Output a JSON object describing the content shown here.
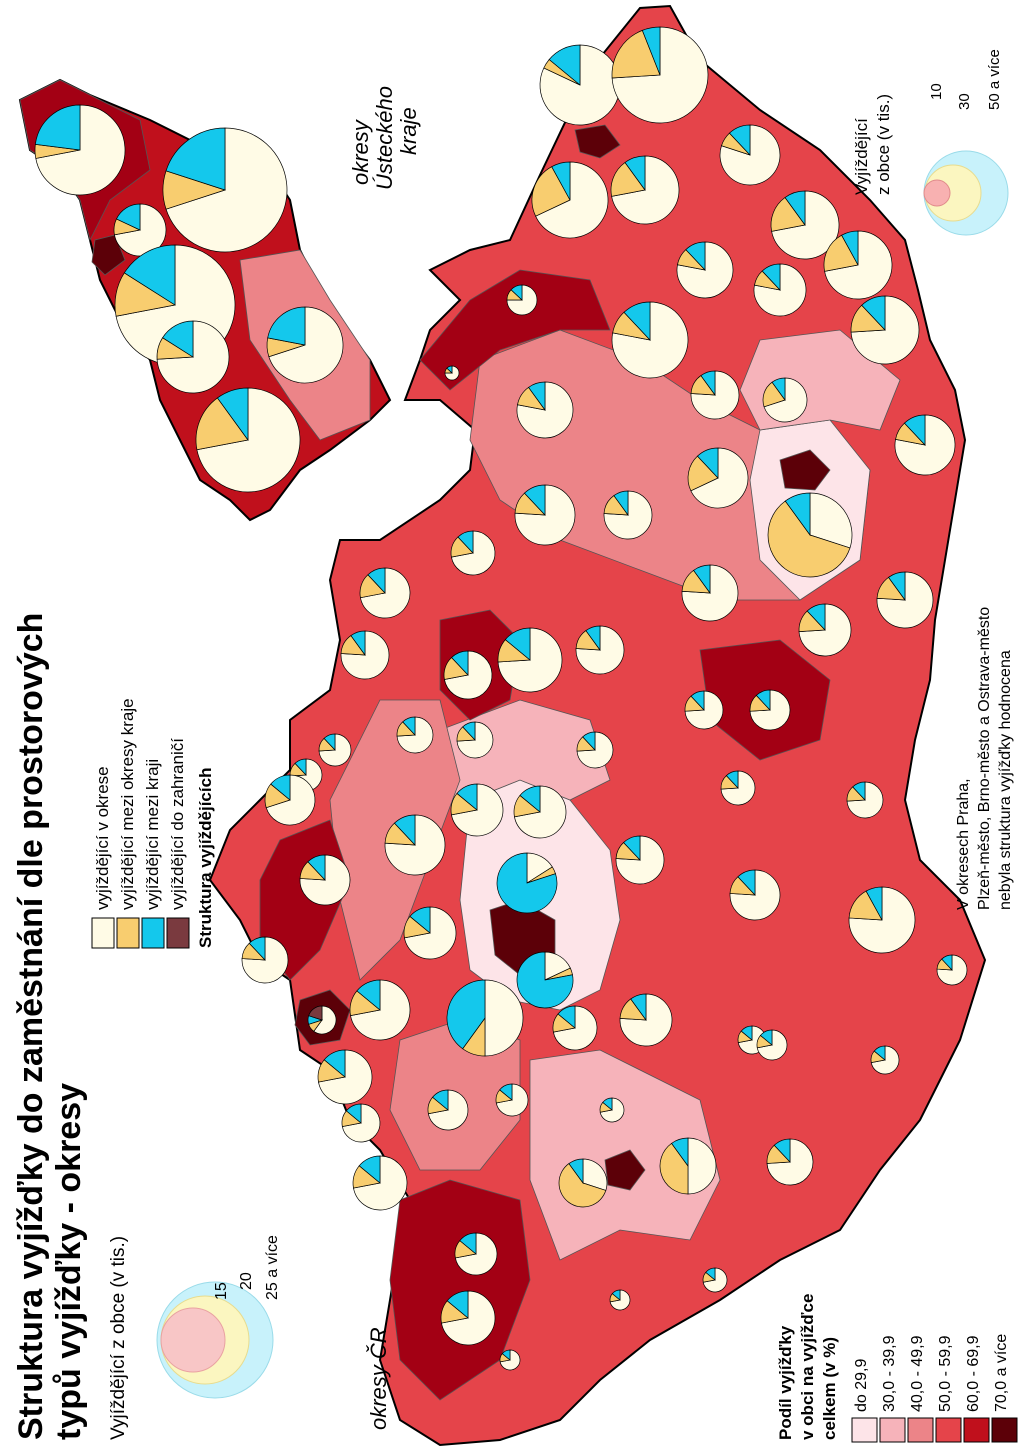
{
  "title": {
    "line1": "Struktura vyjížďky do zaměstnání dle prostorových",
    "line2": "typů vyjížďky - okresy"
  },
  "labels": {
    "cr": "okresy ČR",
    "ustecky_line1": "okresy",
    "ustecky_line2": "Ústeckého",
    "ustecky_line3": "kraje",
    "note_line1": "V okresech Praha,",
    "note_line2": "Plzeň-město, Brno-město a Ostrava-město",
    "note_line3": "nebyla struktura vyjížďky hodnocena"
  },
  "structure_legend": {
    "title": "Struktura vyjíždějících",
    "items": [
      {
        "label": "vyjíždějící v okrese",
        "color": "#fffbe6"
      },
      {
        "label": "vyjíždějící mezi okresy kraje",
        "color": "#f8cd6f"
      },
      {
        "label": "vyjíždějící mezi kraji",
        "color": "#14c8ec"
      },
      {
        "label": "vyjíždějící do zahraničí",
        "color": "#7a3a3f"
      }
    ]
  },
  "size_legend_cr": {
    "title": "Vyjíždějící z obce (v tis.)",
    "values": [
      "15",
      "20",
      "25 a více"
    ]
  },
  "size_legend_ustecky": {
    "title_line1": "Vyjíždějící",
    "title_line2": "z obce (v tis.)",
    "values": [
      "10",
      "30",
      "50 a více"
    ]
  },
  "share_legend": {
    "title_line1": "Podíl vyjížďky",
    "title_line2": "v obci na vyjížďce",
    "title_line3": "celkem (v %)",
    "items": [
      {
        "label": "do 29,9",
        "color": "#fde4e8"
      },
      {
        "label": "30,0 - 39,9",
        "color": "#f6b3ba"
      },
      {
        "label": "40,0 - 49,9",
        "color": "#ec8488"
      },
      {
        "label": "50,0 - 59,9",
        "color": "#e5444a"
      },
      {
        "label": "60,0 - 69,9",
        "color": "#c0101c"
      },
      {
        "label": "70,0 a více",
        "color": "#5c0008"
      }
    ]
  }
}
